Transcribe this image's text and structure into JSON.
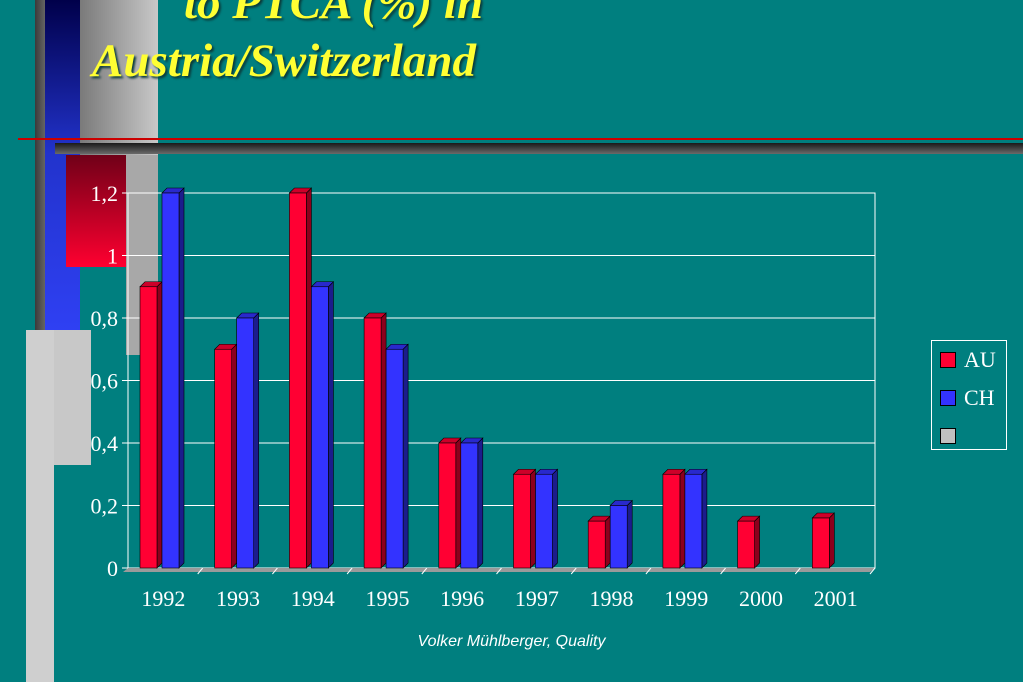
{
  "title": {
    "line1": "to PTCA (%) in",
    "line2": "Austria/Switzerland"
  },
  "footer": "Volker Mühlberger, Quality",
  "colors": {
    "background": "#007f7f",
    "title": "#ffff33",
    "au": "#ff0033",
    "ch": "#3333ff",
    "blank": "#c0c0c0"
  },
  "legend": {
    "items": [
      {
        "label": "AU",
        "color": "#ff0033"
      },
      {
        "label": "CH",
        "color": "#3333ff"
      },
      {
        "label": "",
        "color": "#c0c0c0"
      }
    ]
  },
  "chart_data": {
    "type": "bar",
    "title": "to PTCA (%) in Austria/Switzerland",
    "categories": [
      "1992",
      "1993",
      "1994",
      "1995",
      "1996",
      "1997",
      "1998",
      "1999",
      "2000",
      "2001"
    ],
    "series": [
      {
        "name": "AU",
        "color": "#ff0033",
        "values": [
          0.9,
          0.7,
          1.2,
          0.8,
          0.4,
          0.3,
          0.15,
          0.3,
          0.15,
          0.16
        ]
      },
      {
        "name": "CH",
        "color": "#3333ff",
        "values": [
          1.2,
          0.8,
          0.9,
          0.7,
          0.4,
          0.3,
          0.2,
          0.3,
          null,
          null
        ]
      }
    ],
    "yticks": [
      "0",
      "0,2",
      "0,4",
      "0,6",
      "0,8",
      "1",
      "1,2"
    ],
    "ylim": [
      0,
      1.2
    ],
    "grid": true,
    "legend_position": "right"
  }
}
